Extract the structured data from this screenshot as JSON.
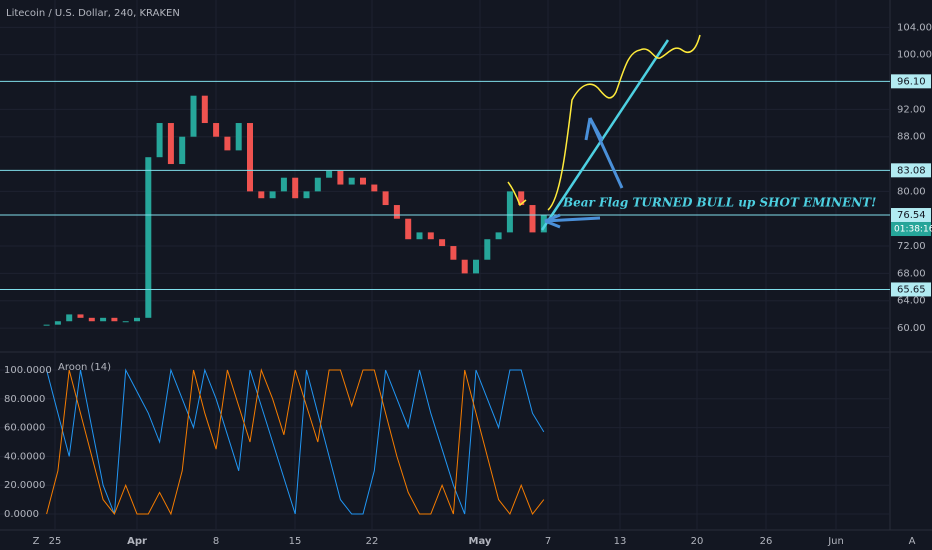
{
  "header": {
    "title": "Litecoin / U.S. Dollar, 240, KRAKEN"
  },
  "price_chart": {
    "type": "candlestick",
    "ylim": [
      56.5,
      108
    ],
    "yticks": [
      {
        "value": 104,
        "label": "104.00"
      },
      {
        "value": 100,
        "label": "100.00"
      },
      {
        "value": 92,
        "label": "92.00"
      },
      {
        "value": 88,
        "label": "88.00"
      },
      {
        "value": 80,
        "label": "80.00"
      },
      {
        "value": 72,
        "label": "72.00"
      },
      {
        "value": 68,
        "label": "68.00"
      },
      {
        "value": 64,
        "label": "64.00"
      },
      {
        "value": 60,
        "label": "60.00"
      }
    ],
    "closes": [
      60.5,
      61,
      62,
      61.5,
      61,
      61.5,
      61,
      61,
      61.5,
      85,
      90,
      84,
      88,
      94,
      90,
      88,
      86,
      90,
      80,
      79,
      80,
      82,
      79,
      80,
      82,
      83,
      81,
      82,
      81,
      80,
      78,
      76,
      73,
      74,
      73,
      72,
      70,
      68,
      70,
      73,
      74,
      80,
      78,
      74,
      76.54
    ],
    "up_color": "#26a69a",
    "down_color": "#ef5350",
    "levels": [
      {
        "value": 96.1,
        "label": "96.10"
      },
      {
        "value": 83.08,
        "label": "83.08"
      },
      {
        "value": 76.54,
        "label": "76.54"
      },
      {
        "value": 65.65,
        "label": "65.65"
      }
    ],
    "countdown": "01:38:16",
    "annotation": "Bear Flag TURNED BULL up SHOT EMINENT!"
  },
  "aroon": {
    "label": "Aroon (14)",
    "ylim": [
      -11.1,
      112.5
    ],
    "yticks": [
      {
        "value": 100,
        "label": "100.0000"
      },
      {
        "value": 80,
        "label": "80.0000"
      },
      {
        "value": 60,
        "label": "60.0000"
      },
      {
        "value": 40,
        "label": "40.0000"
      },
      {
        "value": 20,
        "label": "20.0000"
      },
      {
        "value": 0,
        "label": "0.0000"
      }
    ],
    "series": [
      {
        "color": "#2196f3",
        "values": [
          100,
          70,
          40,
          100,
          60,
          20,
          0,
          100,
          85,
          70,
          50,
          100,
          80,
          60,
          100,
          80,
          55,
          30,
          100,
          75,
          50,
          25,
          0,
          100,
          70,
          40,
          10,
          0,
          0,
          30,
          100,
          80,
          60,
          100,
          70,
          45,
          20,
          0,
          100,
          80,
          60,
          100,
          100,
          70,
          57
        ]
      },
      {
        "color": "#f57c00",
        "values": [
          0,
          30,
          100,
          70,
          40,
          10,
          0,
          20,
          0,
          0,
          15,
          0,
          30,
          100,
          70,
          45,
          100,
          75,
          50,
          100,
          80,
          55,
          100,
          75,
          50,
          100,
          100,
          75,
          100,
          100,
          70,
          40,
          15,
          0,
          0,
          20,
          0,
          100,
          70,
          40,
          10,
          0,
          20,
          0,
          10
        ]
      }
    ]
  },
  "time_axis": {
    "labels": [
      "25",
      "Apr",
      "8",
      "15",
      "22",
      "May",
      "7",
      "13",
      "20",
      "26",
      "Jun"
    ]
  },
  "corner_left": "Z",
  "corner_right": "A"
}
